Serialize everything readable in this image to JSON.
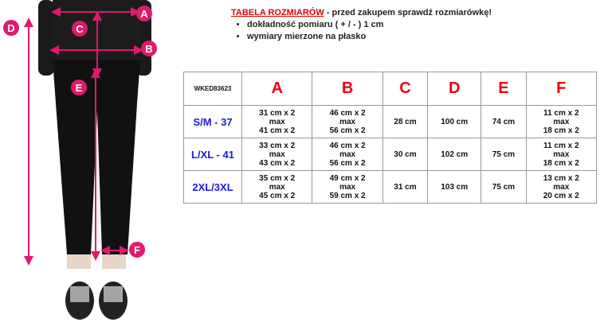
{
  "header": {
    "title": "TABELA ROZMIARÓW",
    "subtitle": " - przed zakupem sprawdź rozmiarówkę!",
    "bullets": [
      "dokładność pomiaru ( + / - ) 1 cm",
      "wymiary mierzone na płasko"
    ]
  },
  "diagram": {
    "labels": [
      "A",
      "B",
      "C",
      "D",
      "E",
      "F"
    ],
    "accent": "#e0196e"
  },
  "table": {
    "code": "WKED83623",
    "columns": [
      "A",
      "B",
      "C",
      "D",
      "E",
      "F"
    ],
    "rows": [
      {
        "size": "S/M - 37",
        "cells": [
          [
            "31 cm x 2",
            "max",
            "41 cm x 2"
          ],
          [
            "46 cm x 2",
            "max",
            "56 cm x 2"
          ],
          [
            "28 cm"
          ],
          [
            "100 cm"
          ],
          [
            "74 cm"
          ],
          [
            "11 cm x 2",
            "max",
            "18 cm x 2"
          ]
        ]
      },
      {
        "size": "L/XL - 41",
        "cells": [
          [
            "33 cm x 2",
            "max",
            "43 cm x 2"
          ],
          [
            "46 cm x 2",
            "max",
            "56 cm x 2"
          ],
          [
            "30 cm"
          ],
          [
            "102 cm"
          ],
          [
            "75 cm"
          ],
          [
            "11 cm x 2",
            "max",
            "18 cm x 2"
          ]
        ]
      },
      {
        "size": "2XL/3XL",
        "cells": [
          [
            "35 cm x 2",
            "max",
            "45 cm x 2"
          ],
          [
            "49 cm x 2",
            "max",
            "59 cm x 2"
          ],
          [
            "31 cm"
          ],
          [
            "103 cm"
          ],
          [
            "75 cm"
          ],
          [
            "13 cm x 2",
            "max",
            "20 cm x 2"
          ]
        ]
      }
    ]
  }
}
